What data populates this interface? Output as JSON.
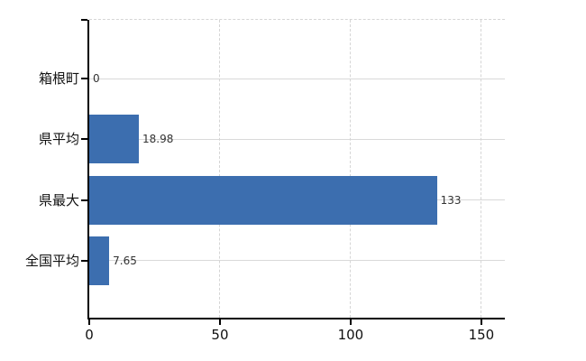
{
  "chart_data": {
    "type": "bar",
    "orientation": "horizontal",
    "title": "",
    "categories": [
      "箱根町",
      "県平均",
      "県最大",
      "全国平均"
    ],
    "values": [
      0,
      18.98,
      133,
      7.65
    ],
    "value_labels": [
      "0",
      "18.98",
      "133",
      "7.65"
    ],
    "x_ticks": [
      0,
      50,
      100,
      150
    ],
    "x_tick_labels": [
      "0",
      "50",
      "100",
      "150"
    ],
    "xlim": [
      0,
      159
    ],
    "grid": {
      "vertical": "dashed",
      "horizontal": "solid",
      "top_border": "dashed"
    },
    "legend": "none",
    "colors": {
      "bar": "#3C6EAF",
      "axis": "#000000",
      "gridline_horizontal": "#D9D9D9",
      "gridline_vertical": "#D5D5D5",
      "category_label": "#111111",
      "value_label": "#333333",
      "tick_label": "#111111",
      "background": "#FFFFFF"
    }
  }
}
